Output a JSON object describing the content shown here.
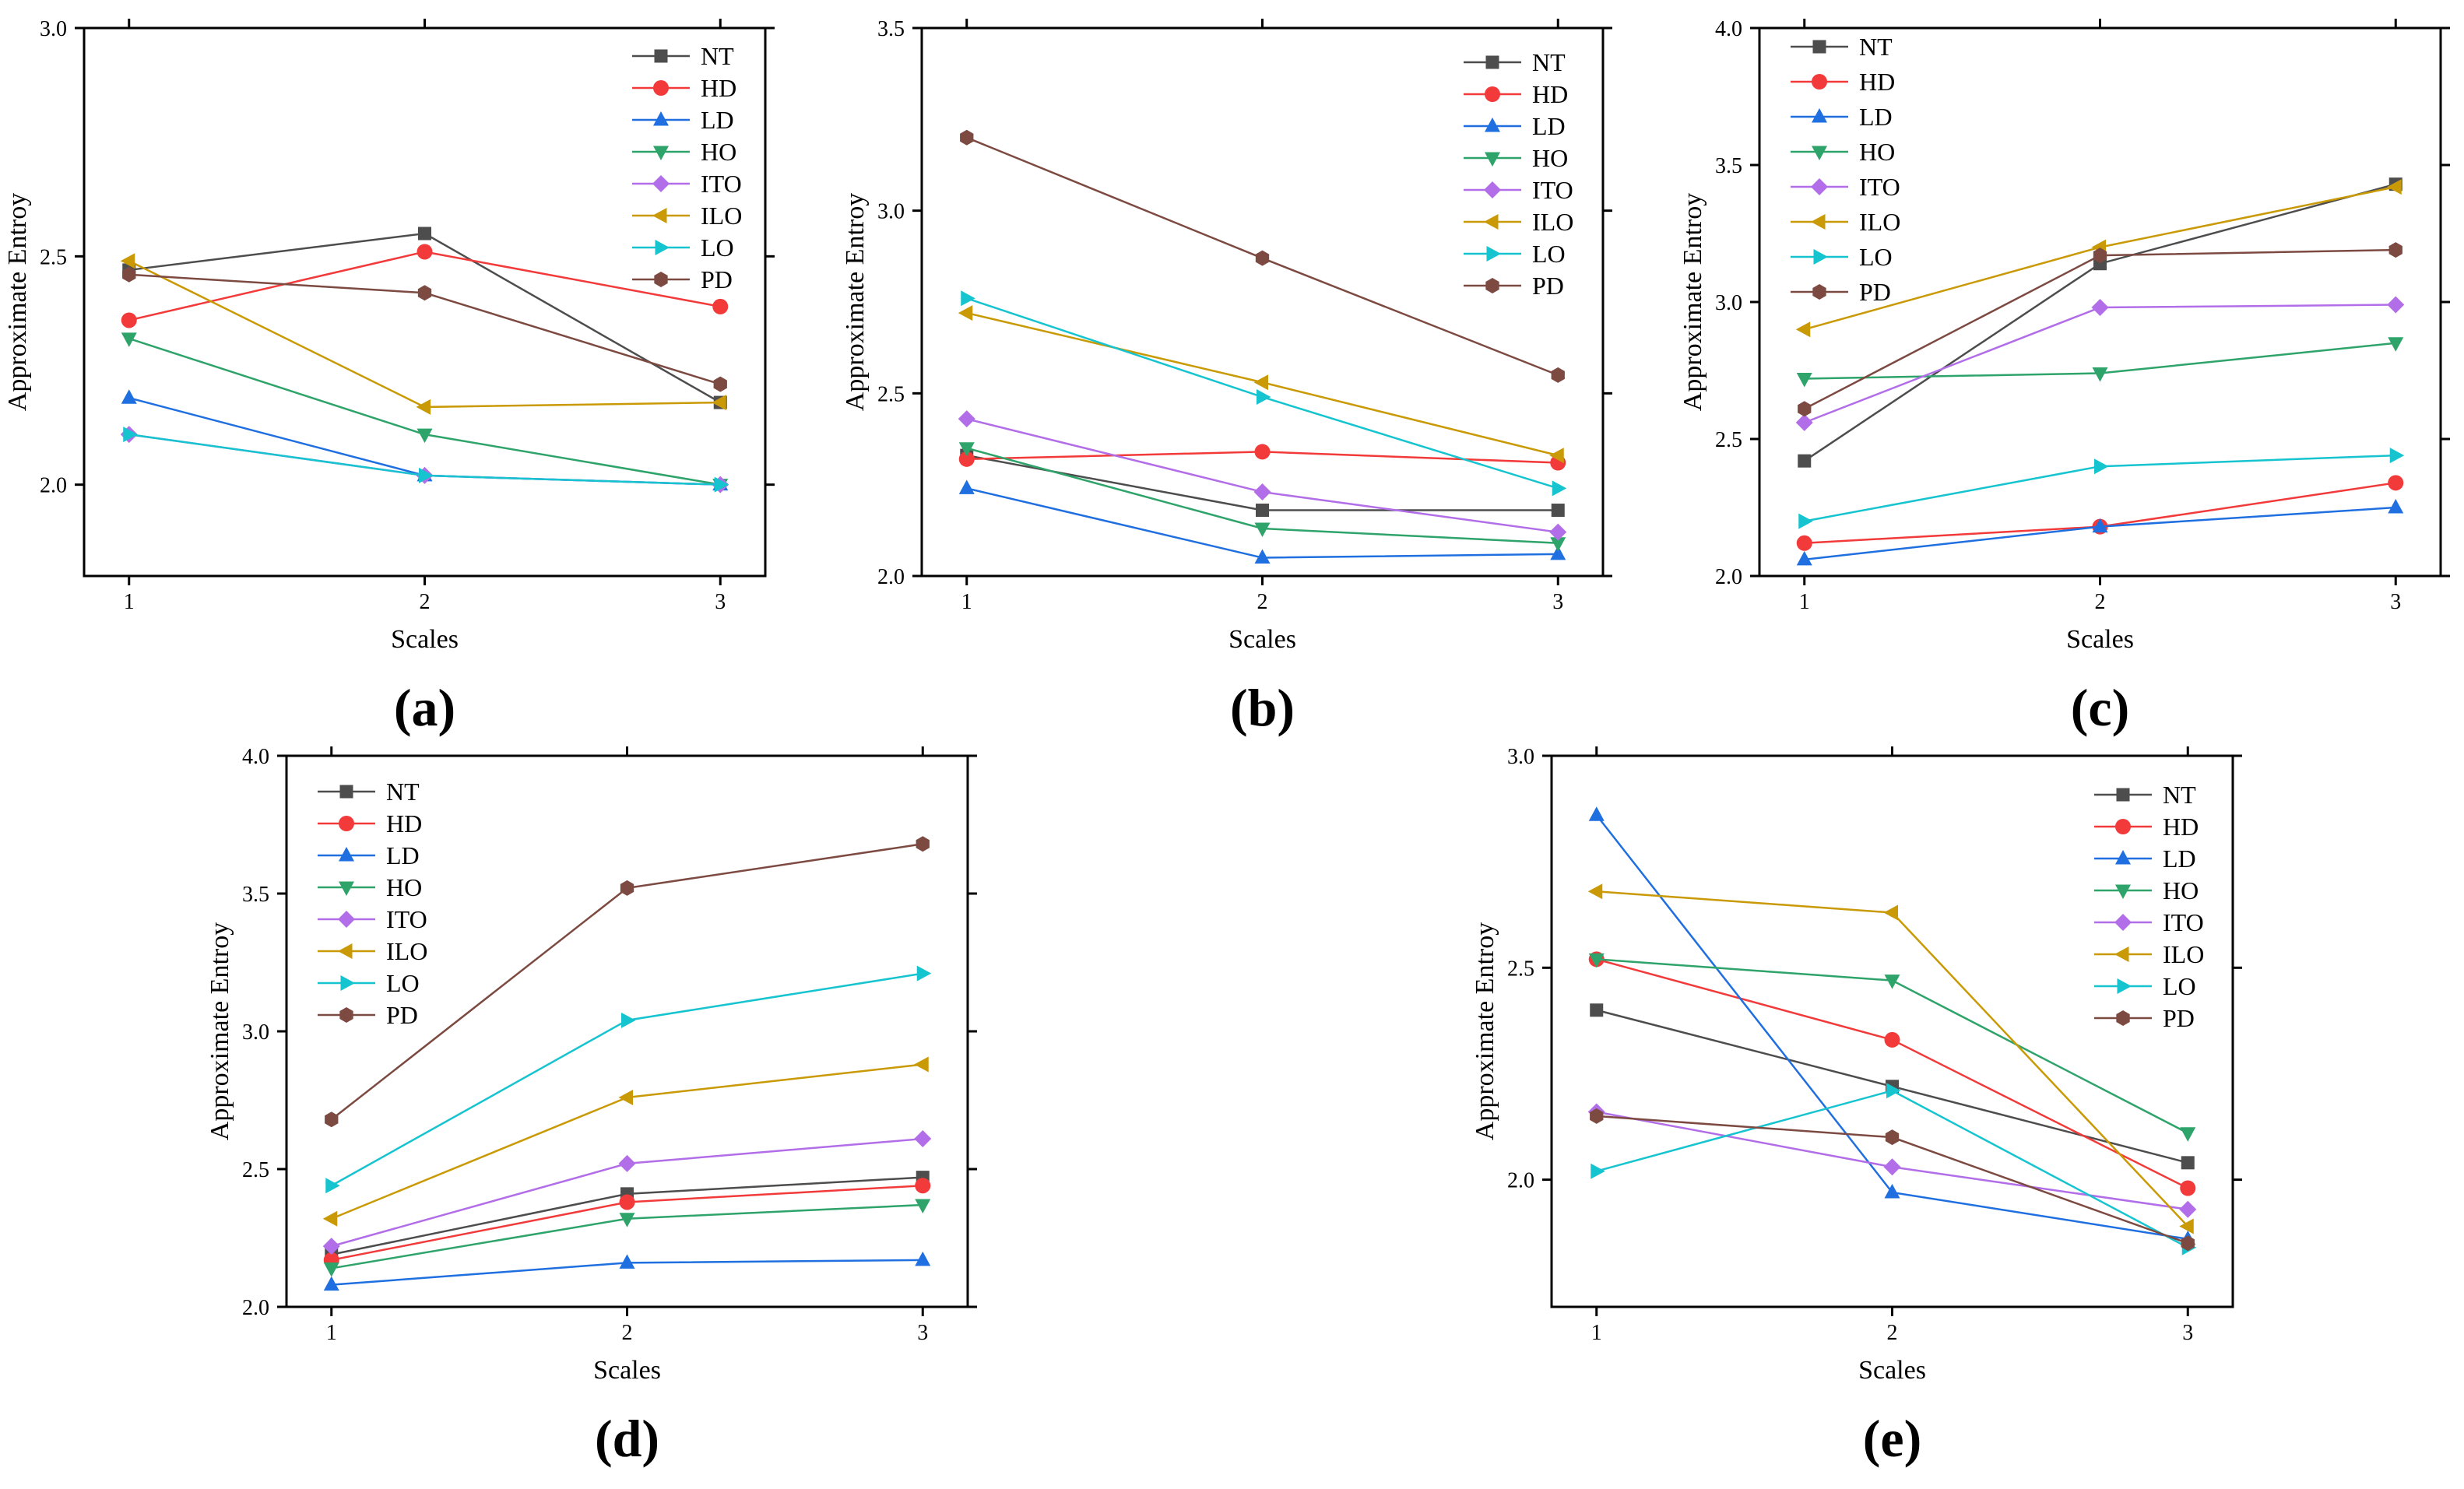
{
  "figure": {
    "panels": [
      "a",
      "b",
      "c",
      "d",
      "e"
    ]
  },
  "colors": {
    "NT": "#4d4d4d",
    "HD": "#f23a3a",
    "LD": "#1f6fe0",
    "HO": "#2ea36a",
    "ITO": "#b26de8",
    "ILO": "#c99a06",
    "LO": "#16c4d0",
    "PD": "#7d4a42"
  },
  "markers": {
    "NT": "square",
    "HD": "circle",
    "LD": "triangle-up",
    "HO": "triangle-down",
    "ITO": "diamond",
    "ILO": "triangle-left",
    "LO": "triangle-right",
    "PD": "hexagon"
  },
  "chart_data": [
    {
      "id": "a",
      "panel_label": "(a)",
      "type": "line",
      "xlabel": "Scales",
      "ylabel": "Approximate Entroy",
      "x": [
        1,
        2,
        3
      ],
      "x_ticks": [
        "1",
        "2",
        "3"
      ],
      "ylim": [
        1.8,
        3.0
      ],
      "y_ticks": [
        "2.0",
        "2.5",
        "3.0"
      ],
      "legend_position": "top-right",
      "series": [
        {
          "name": "NT",
          "values": [
            2.47,
            2.55,
            2.18
          ]
        },
        {
          "name": "HD",
          "values": [
            2.36,
            2.51,
            2.39
          ]
        },
        {
          "name": "LD",
          "values": [
            2.19,
            2.02,
            2.0
          ]
        },
        {
          "name": "HO",
          "values": [
            2.32,
            2.11,
            2.0
          ]
        },
        {
          "name": "ITO",
          "values": [
            2.11,
            2.02,
            2.0
          ]
        },
        {
          "name": "ILO",
          "values": [
            2.49,
            2.17,
            2.18
          ]
        },
        {
          "name": "LO",
          "values": [
            2.11,
            2.02,
            2.0
          ]
        },
        {
          "name": "PD",
          "values": [
            2.46,
            2.42,
            2.22
          ]
        }
      ]
    },
    {
      "id": "b",
      "panel_label": "(b)",
      "type": "line",
      "xlabel": "Scales",
      "ylabel": "Approximate Entroy",
      "x": [
        1,
        2,
        3
      ],
      "x_ticks": [
        "1",
        "2",
        "3"
      ],
      "ylim": [
        2.0,
        3.5
      ],
      "y_ticks": [
        "2.0",
        "2.5",
        "3.0",
        "3.5"
      ],
      "legend_position": "top-right",
      "series": [
        {
          "name": "NT",
          "values": [
            2.33,
            2.18,
            2.18
          ]
        },
        {
          "name": "HD",
          "values": [
            2.32,
            2.34,
            2.31
          ]
        },
        {
          "name": "LD",
          "values": [
            2.24,
            2.05,
            2.06
          ]
        },
        {
          "name": "HO",
          "values": [
            2.35,
            2.13,
            2.09
          ]
        },
        {
          "name": "ITO",
          "values": [
            2.43,
            2.23,
            2.12
          ]
        },
        {
          "name": "ILO",
          "values": [
            2.72,
            2.53,
            2.33
          ]
        },
        {
          "name": "LO",
          "values": [
            2.76,
            2.49,
            2.24
          ]
        },
        {
          "name": "PD",
          "values": [
            3.2,
            2.87,
            2.55
          ]
        }
      ]
    },
    {
      "id": "c",
      "panel_label": "(c)",
      "type": "line",
      "xlabel": "Scales",
      "ylabel": "Approximate Entroy",
      "x": [
        1,
        2,
        3
      ],
      "x_ticks": [
        "1",
        "2",
        "3"
      ],
      "ylim": [
        2.0,
        4.0
      ],
      "y_ticks": [
        "2.0",
        "2.5",
        "3.0",
        "3.5",
        "4.0"
      ],
      "legend_position": "top-left",
      "series": [
        {
          "name": "NT",
          "values": [
            2.42,
            3.14,
            3.43
          ]
        },
        {
          "name": "HD",
          "values": [
            2.12,
            2.18,
            2.34
          ]
        },
        {
          "name": "LD",
          "values": [
            2.06,
            2.18,
            2.25
          ]
        },
        {
          "name": "HO",
          "values": [
            2.72,
            2.74,
            2.85
          ]
        },
        {
          "name": "ITO",
          "values": [
            2.56,
            2.98,
            2.99
          ]
        },
        {
          "name": "ILO",
          "values": [
            2.9,
            3.2,
            3.42
          ]
        },
        {
          "name": "LO",
          "values": [
            2.2,
            2.4,
            2.44
          ]
        },
        {
          "name": "PD",
          "values": [
            2.61,
            3.17,
            3.19
          ]
        }
      ]
    },
    {
      "id": "d",
      "panel_label": "(d)",
      "type": "line",
      "xlabel": "Scales",
      "ylabel": "Approximate Entroy",
      "x": [
        1,
        2,
        3
      ],
      "x_ticks": [
        "1",
        "2",
        "3"
      ],
      "ylim": [
        2.0,
        4.0
      ],
      "y_ticks": [
        "2.0",
        "2.5",
        "3.0",
        "3.5",
        "4.0"
      ],
      "legend_position": "top-left",
      "series": [
        {
          "name": "NT",
          "values": [
            2.19,
            2.41,
            2.47
          ]
        },
        {
          "name": "HD",
          "values": [
            2.17,
            2.38,
            2.44
          ]
        },
        {
          "name": "LD",
          "values": [
            2.08,
            2.16,
            2.17
          ]
        },
        {
          "name": "HO",
          "values": [
            2.14,
            2.32,
            2.37
          ]
        },
        {
          "name": "ITO",
          "values": [
            2.22,
            2.52,
            2.61
          ]
        },
        {
          "name": "ILO",
          "values": [
            2.32,
            2.76,
            2.88
          ]
        },
        {
          "name": "LO",
          "values": [
            2.44,
            3.04,
            3.21
          ]
        },
        {
          "name": "PD",
          "values": [
            2.68,
            3.52,
            3.68
          ]
        }
      ]
    },
    {
      "id": "e",
      "panel_label": "(e)",
      "type": "line",
      "xlabel": "Scales",
      "ylabel": "Approximate Entroy",
      "x": [
        1,
        2,
        3
      ],
      "x_ticks": [
        "1",
        "2",
        "3"
      ],
      "ylim": [
        1.7,
        3.0
      ],
      "y_ticks": [
        "2.0",
        "2.5",
        "3.0"
      ],
      "legend_position": "top-right",
      "series": [
        {
          "name": "NT",
          "values": [
            2.4,
            2.22,
            2.04
          ]
        },
        {
          "name": "HD",
          "values": [
            2.52,
            2.33,
            1.98
          ]
        },
        {
          "name": "LD",
          "values": [
            2.86,
            1.97,
            1.86
          ]
        },
        {
          "name": "HO",
          "values": [
            2.52,
            2.47,
            2.11
          ]
        },
        {
          "name": "ITO",
          "values": [
            2.16,
            2.03,
            1.93
          ]
        },
        {
          "name": "ILO",
          "values": [
            2.68,
            2.63,
            1.89
          ]
        },
        {
          "name": "LO",
          "values": [
            2.02,
            2.21,
            1.84
          ]
        },
        {
          "name": "PD",
          "values": [
            2.15,
            2.1,
            1.85
          ]
        }
      ]
    }
  ]
}
